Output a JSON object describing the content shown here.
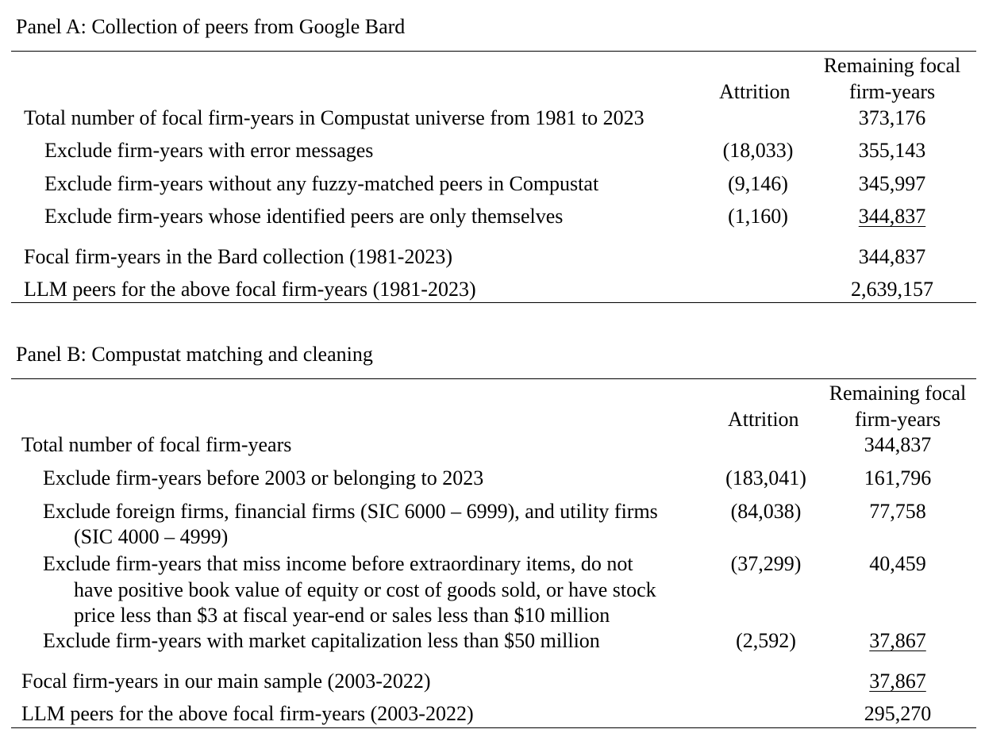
{
  "panel_a": {
    "title": "Panel A: Collection of peers from Google Bard",
    "col_attrition": "Attrition",
    "col_remaining_1": "Remaining focal",
    "col_remaining_2": "firm-years",
    "rows": [
      {
        "label": "Total number of focal firm-years in Compustat universe from 1981 to 2023",
        "attrition": "",
        "remaining": "373,176"
      },
      {
        "label": "Exclude firm-years with error messages",
        "attrition": "(18,033)",
        "remaining": "355,143"
      },
      {
        "label": "Exclude firm-years without any fuzzy-matched peers in Compustat",
        "attrition": "(9,146)",
        "remaining": "345,997"
      },
      {
        "label": "Exclude firm-years whose identified peers are only themselves",
        "attrition": "(1,160)",
        "remaining": "344,837"
      }
    ],
    "summary": [
      {
        "label": "Focal firm-years in the Bard collection (1981-2023)",
        "value": "344,837"
      },
      {
        "label": "LLM peers for the above focal firm-years (1981-2023)",
        "value": "2,639,157"
      }
    ]
  },
  "panel_b": {
    "title": "Panel B: Compustat matching and cleaning",
    "col_attrition": "Attrition",
    "col_remaining_1": "Remaining focal",
    "col_remaining_2": "firm-years",
    "rows": [
      {
        "label": "Total number of focal firm-years",
        "attrition": "",
        "remaining": "344,837"
      },
      {
        "label": "Exclude firm-years before 2003 or belonging to 2023",
        "attrition": "(183,041)",
        "remaining": "161,796"
      },
      {
        "label": "Exclude foreign firms, financial firms (SIC 6000 – 6999), and utility firms",
        "label_cont": [
          "(SIC 4000 – 4999)"
        ],
        "attrition": "(84,038)",
        "remaining": "77,758"
      },
      {
        "label": "Exclude firm-years that miss income before extraordinary items, do not",
        "label_cont": [
          "have positive book value of equity or cost of goods sold, or have stock",
          "price less than $3 at fiscal year-end or sales less than $10 million"
        ],
        "attrition": "(37,299)",
        "remaining": "40,459"
      },
      {
        "label": "Exclude firm-years with market capitalization less than $50 million",
        "attrition": "(2,592)",
        "remaining": "37,867"
      }
    ],
    "summary": [
      {
        "label": "Focal firm-years in our main sample (2003-2022)",
        "value": "37,867"
      },
      {
        "label": "LLM peers for the above focal firm-years (2003-2022)",
        "value": "295,270"
      }
    ]
  }
}
